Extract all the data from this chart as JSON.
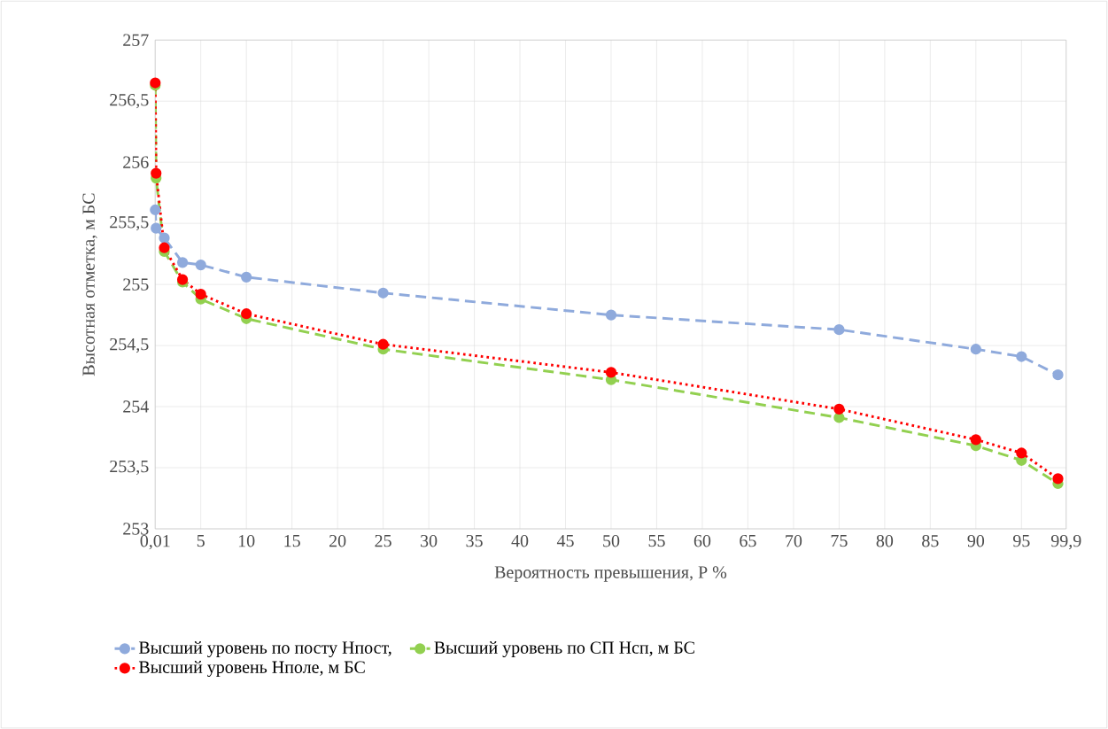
{
  "chart_data": {
    "type": "line",
    "xlabel": "Вероятность превышения, Р %",
    "ylabel": "Высотная отметка, м БС",
    "x": [
      0.01,
      0.1,
      1,
      3,
      5,
      10,
      25,
      50,
      75,
      90,
      95,
      99
    ],
    "series": [
      {
        "name": "Высший уровень по посту Нпост,",
        "color": "#8faadc",
        "line_style": "dashed",
        "values": [
          255.61,
          255.46,
          255.38,
          255.18,
          255.16,
          255.06,
          254.93,
          254.75,
          254.63,
          254.47,
          254.41,
          254.26
        ]
      },
      {
        "name": "Высший уровень по СП Нсп, м БС",
        "color": "#92d050",
        "line_style": "dashed",
        "values": [
          256.63,
          255.87,
          255.27,
          255.02,
          254.88,
          254.72,
          254.47,
          254.22,
          253.91,
          253.68,
          253.56,
          253.37
        ]
      },
      {
        "name": "Высший уровень Нполе, м БС",
        "color": "#ff0000",
        "line_style": "dotted",
        "values": [
          256.65,
          255.91,
          255.3,
          255.04,
          254.92,
          254.76,
          254.51,
          254.28,
          253.98,
          253.73,
          253.62,
          253.41
        ]
      }
    ],
    "xlim": [
      0,
      99.9
    ],
    "ylim": [
      253,
      257
    ],
    "xticks": [
      {
        "value": 0.01,
        "label": "0,01"
      },
      5,
      10,
      15,
      20,
      25,
      30,
      35,
      40,
      45,
      50,
      55,
      60,
      65,
      70,
      75,
      80,
      85,
      90,
      95,
      {
        "value": 99.9,
        "label": "99,9"
      }
    ],
    "yticks": [
      253,
      {
        "value": 253.5,
        "label": "253,5"
      },
      254,
      {
        "value": 254.5,
        "label": "254,5"
      },
      255,
      {
        "value": 255.5,
        "label": "255,5"
      },
      256,
      {
        "value": 256.5,
        "label": "256,5"
      },
      257
    ],
    "grid": true,
    "legend": "bottom",
    "marker": "circle"
  }
}
